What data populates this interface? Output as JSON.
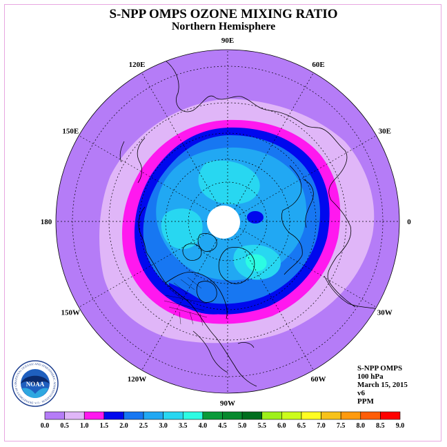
{
  "header": {
    "title": "S-NPP OMPS OZONE MIXING RATIO",
    "subtitle": "Northern Hemisphere"
  },
  "map": {
    "projection": "north-polar-stereographic",
    "meridian_labels": [
      {
        "text": "90E",
        "lon": 90
      },
      {
        "text": "60E",
        "lon": 60
      },
      {
        "text": "30E",
        "lon": 30
      },
      {
        "text": "0",
        "lon": 0
      },
      {
        "text": "30W",
        "lon": -30
      },
      {
        "text": "60W",
        "lon": -60
      },
      {
        "text": "90W",
        "lon": -90
      },
      {
        "text": "120W",
        "lon": -120
      },
      {
        "text": "150W",
        "lon": -150
      },
      {
        "text": "180",
        "lon": 180
      },
      {
        "text": "150E",
        "lon": 150
      },
      {
        "text": "120E",
        "lon": 120
      }
    ],
    "colors": {
      "outer": "#b57cf7",
      "light_lavender": "#e0b6f8",
      "magenta": "#ff18ef",
      "blue": "#0008ee",
      "mid_blue": "#1777f2",
      "sky_blue": "#21a8f3",
      "cyan": "#28d7f1",
      "aqua": "#2cfce3",
      "no_data": "#ffffff"
    }
  },
  "info": {
    "instrument": "S-NPP OMPS",
    "level": "100 hPa",
    "date": "March 15, 2015",
    "version": "v6",
    "units": "PPM"
  },
  "logo": {
    "name": "NOAA",
    "ring_text": "NATIONAL OCEANIC AND ATMOSPHERIC ADMINISTRATION · U.S. DEPARTMENT OF COMMERCE"
  },
  "colorbar": {
    "ticks": [
      "0.0",
      "0.5",
      "1.0",
      "1.5",
      "2.0",
      "2.5",
      "3.0",
      "3.5",
      "4.0",
      "4.5",
      "5.0",
      "5.5",
      "6.0",
      "6.5",
      "7.0",
      "7.5",
      "8.0",
      "8.5",
      "9.0"
    ],
    "colors": [
      "#b57cf7",
      "#e0b6f8",
      "#ff18ef",
      "#0008ee",
      "#1777f2",
      "#21a8f3",
      "#28d7f1",
      "#2cfce3",
      "#099a39",
      "#06892d",
      "#006e1e",
      "#9ef01a",
      "#ccfc1c",
      "#fffd22",
      "#f7c21a",
      "#ff9a0e",
      "#ff5d08",
      "#ff0000",
      "#8b5a3c"
    ]
  }
}
